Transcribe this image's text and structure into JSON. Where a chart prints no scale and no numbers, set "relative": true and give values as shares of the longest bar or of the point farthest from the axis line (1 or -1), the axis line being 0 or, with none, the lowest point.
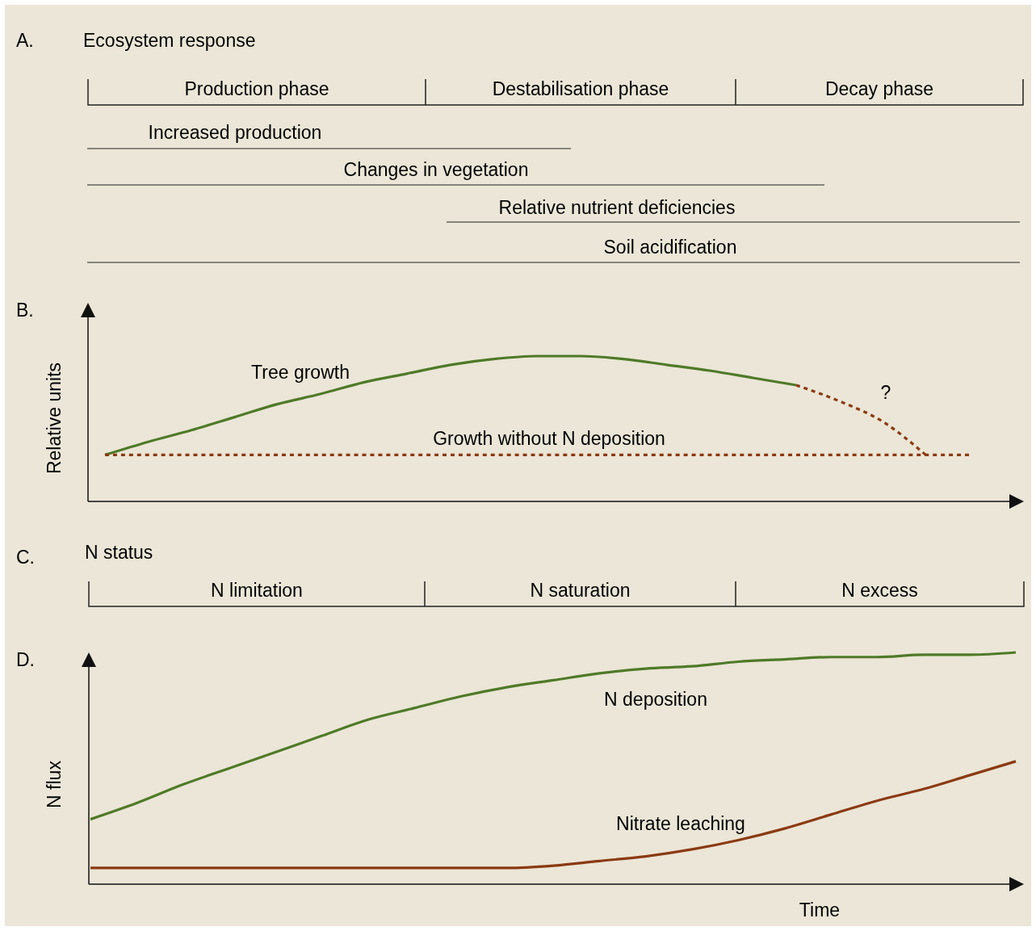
{
  "chart_data": [
    {
      "type": "other",
      "title": "A.",
      "subtitle": "Ecosystem response",
      "annotations": [
        "Production phase",
        "Destabilisation phase",
        "Decay phase",
        "Increased production",
        "Changes in vegetation",
        "Relative nutrient deficiencies",
        "Soil acidification"
      ]
    },
    {
      "type": "line",
      "title": "B.",
      "ylabel": "Relative units",
      "relative": true,
      "annotations": [
        "?"
      ],
      "categories": [
        null,
        null,
        null,
        null,
        null,
        null,
        null,
        null,
        null,
        null,
        null,
        null,
        null,
        null,
        null,
        null,
        null,
        null,
        null,
        null,
        null
      ],
      "series": [
        {
          "name": "Tree growth",
          "color": "#4f7a28",
          "line_style": "solid",
          "values": [
            0.32,
            0.41,
            0.49,
            0.58,
            0.67,
            0.74,
            0.82,
            0.88,
            0.94,
            0.98,
            1.0,
            1.0,
            0.98,
            0.94,
            0.9,
            0.85,
            0.8,
            null,
            null,
            null,
            null
          ]
        },
        {
          "color": "#8b3a12",
          "line_style": "dotted",
          "values": [
            null,
            null,
            null,
            null,
            null,
            null,
            null,
            null,
            null,
            null,
            null,
            null,
            null,
            null,
            null,
            null,
            0.8,
            0.69,
            0.55,
            0.32,
            null
          ]
        },
        {
          "name": "Growth without N deposition",
          "color": "#8b3a12",
          "line_style": "dotted",
          "values": [
            0.32,
            0.32,
            0.32,
            0.32,
            0.32,
            0.32,
            0.32,
            0.32,
            0.32,
            0.32,
            0.32,
            0.32,
            0.32,
            0.32,
            0.32,
            0.32,
            0.32,
            0.32,
            0.32,
            0.32,
            0.32
          ]
        }
      ]
    },
    {
      "type": "other",
      "title": "C.",
      "subtitle": "N status",
      "annotations": [
        "N limitation",
        "N saturation",
        "N  excess"
      ]
    },
    {
      "type": "line",
      "title": "D.",
      "xlabel": "Time",
      "ylabel": "N flux",
      "relative": true,
      "categories": [
        null,
        null,
        null,
        null,
        null,
        null,
        null,
        null,
        null,
        null,
        null,
        null,
        null,
        null,
        null,
        null,
        null,
        null,
        null,
        null,
        null
      ],
      "series": [
        {
          "name": "N deposition",
          "color": "#4f7a28",
          "line_style": "solid",
          "values": [
            0.28,
            0.35,
            0.43,
            0.5,
            0.57,
            0.64,
            0.71,
            0.76,
            0.81,
            0.85,
            0.88,
            0.91,
            0.93,
            0.94,
            0.96,
            0.97,
            0.98,
            0.98,
            0.99,
            0.99,
            1.0
          ]
        },
        {
          "name": "Nitrate leaching",
          "color": "#8b3a12",
          "line_style": "solid",
          "values": [
            0.07,
            0.07,
            0.07,
            0.07,
            0.07,
            0.07,
            0.07,
            0.07,
            0.07,
            0.07,
            0.08,
            0.1,
            0.12,
            0.15,
            0.19,
            0.24,
            0.3,
            0.36,
            0.41,
            0.47,
            0.53
          ]
        }
      ]
    }
  ]
}
